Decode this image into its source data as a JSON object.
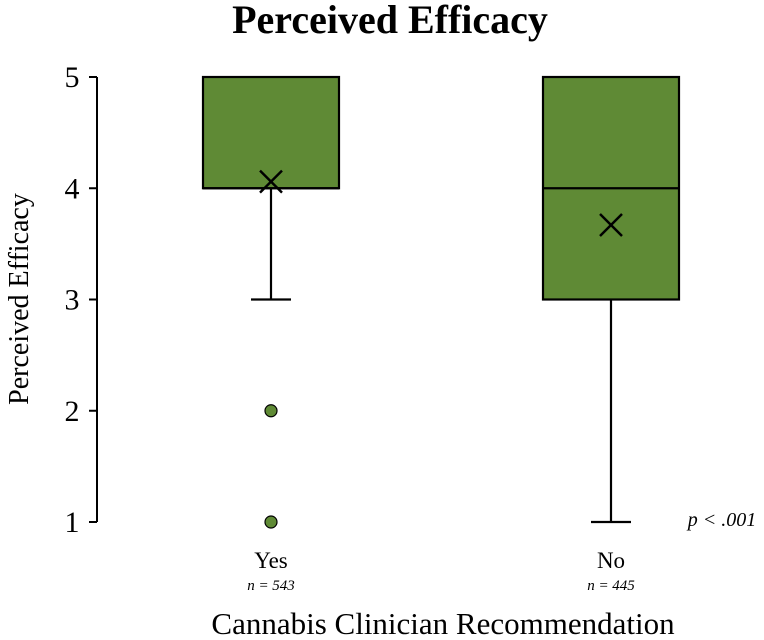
{
  "chart_data": {
    "type": "boxplot",
    "title": "Perceived Efficacy",
    "ylabel": "Perceived Efficacy",
    "xlabel": "Cannabis Clinician Recommendation",
    "ylim": [
      1,
      5
    ],
    "yticks": [
      "1",
      "2",
      "3",
      "4",
      "5"
    ],
    "box_color": "#5f8a35",
    "annotation": "p < .001",
    "groups": [
      {
        "category": "Yes",
        "n_label": "n = 543",
        "whisker_low": 3,
        "q1": 4,
        "median": 4,
        "q3": 5,
        "whisker_high": 5,
        "mean": 4.06,
        "outliers": [
          2,
          1
        ]
      },
      {
        "category": "No",
        "n_label": "n = 445",
        "whisker_low": 1,
        "q1": 3,
        "median": 4,
        "q3": 5,
        "whisker_high": 5,
        "mean": 3.67,
        "outliers": []
      }
    ]
  }
}
